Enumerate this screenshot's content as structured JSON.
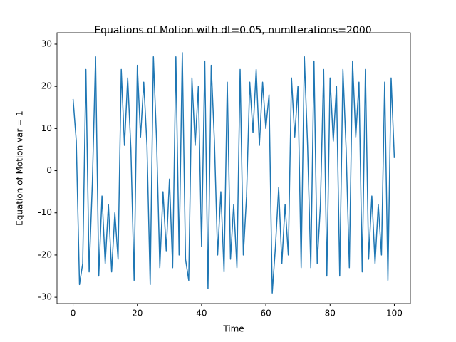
{
  "chart_data": {
    "type": "line",
    "title": "Equations of Motion with dt=0.05, numIterations=2000",
    "xlabel": "Time",
    "ylabel": "Equation of Motion var = 1",
    "x": [
      0,
      1,
      2,
      3,
      4,
      5,
      6,
      7,
      8,
      9,
      10,
      11,
      12,
      13,
      14,
      15,
      16,
      17,
      18,
      19,
      20,
      21,
      22,
      23,
      24,
      25,
      26,
      27,
      28,
      29,
      30,
      31,
      32,
      33,
      34,
      35,
      36,
      37,
      38,
      39,
      40,
      41,
      42,
      43,
      44,
      45,
      46,
      47,
      48,
      49,
      50,
      51,
      52,
      53,
      54,
      55,
      56,
      57,
      58,
      59,
      60,
      61,
      62,
      63,
      64,
      65,
      66,
      67,
      68,
      69,
      70,
      71,
      72,
      73,
      74,
      75,
      76,
      77,
      78,
      79,
      80,
      81,
      82,
      83,
      84,
      85,
      86,
      87,
      88,
      89,
      90,
      91,
      92,
      93,
      94,
      95,
      96,
      97,
      98,
      99,
      100
    ],
    "series": [
      {
        "color": "#1f77b4",
        "values": [
          17,
          7,
          -27,
          -22,
          24,
          -24,
          -3,
          27,
          -25,
          -6,
          -22,
          -8,
          -24,
          -10,
          -21,
          24,
          6,
          22,
          5,
          -26,
          25,
          8,
          21,
          6,
          -27,
          27,
          7,
          -23,
          -5,
          -19,
          -2,
          -23,
          27,
          -20,
          28,
          -21,
          -26,
          22,
          6,
          20,
          -18,
          26,
          -28,
          25,
          7,
          -20,
          -5,
          -24,
          21,
          -21,
          -8,
          -23,
          24,
          -20,
          -6,
          21,
          9,
          24,
          6,
          21,
          10,
          18,
          -29,
          -18,
          -4,
          -22,
          -8,
          -20,
          22,
          8,
          20,
          -23,
          27,
          6,
          -23,
          26,
          -22,
          -8,
          24,
          -25,
          22,
          7,
          20,
          -25,
          24,
          5,
          -23,
          26,
          8,
          21,
          -24,
          24,
          -21,
          -6,
          -22,
          -8,
          -20,
          21,
          -26,
          22,
          3
        ]
      }
    ],
    "xlim": [
      -5,
      105
    ],
    "ylim": [
      -31.5,
      32.7
    ],
    "xticks": [
      0,
      20,
      40,
      60,
      80,
      100
    ],
    "yticks": [
      -30,
      -20,
      -10,
      0,
      10,
      20,
      30
    ]
  }
}
